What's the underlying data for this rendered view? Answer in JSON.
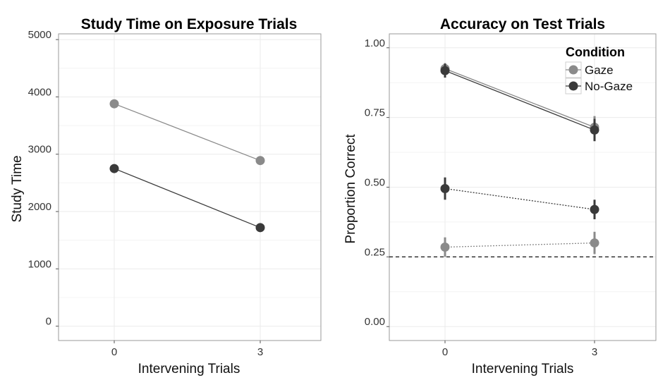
{
  "colors": {
    "Gaze": "#8a8a8a",
    "No-Gaze": "#3a3a3a",
    "grid": "#ebebeb",
    "frame": "#9a9a9a"
  },
  "chart_data": [
    {
      "type": "line",
      "title": "Study Time on Exposure Trials",
      "xlabel": "Intervening Trials",
      "ylabel": "Study Time",
      "categories": [
        "0",
        "3"
      ],
      "ylim": [
        -250,
        5100
      ],
      "yticks": [
        0,
        1000,
        2000,
        3000,
        4000,
        5000
      ],
      "ytick_labels": [
        "0",
        "1000",
        "2000",
        "3000",
        "4000",
        "5000"
      ],
      "grid": true,
      "series": [
        {
          "name": "Gaze",
          "values": [
            3880,
            2890
          ],
          "err": [
            60,
            60
          ],
          "line": "solid"
        },
        {
          "name": "No-Gaze",
          "values": [
            2750,
            1720
          ],
          "err": [
            30,
            30
          ],
          "line": "solid"
        }
      ]
    },
    {
      "type": "line",
      "title": "Accuracy on Test Trials",
      "xlabel": "Intervening Trials",
      "ylabel": "Proportion Correct",
      "categories": [
        "0",
        "3"
      ],
      "ylim": [
        -0.05,
        1.05
      ],
      "yticks": [
        0,
        0.25,
        0.5,
        0.75,
        1.0
      ],
      "ytick_labels": [
        "0.00",
        "0.25",
        "0.50",
        "0.75",
        "1.00"
      ],
      "grid": true,
      "reference_line": {
        "y": 0.25,
        "style": "dashed"
      },
      "legend": {
        "title": "Condition",
        "position": "top-right",
        "entries": [
          "Gaze",
          "No-Gaze"
        ]
      },
      "series": [
        {
          "name": "Gaze",
          "values": [
            0.925,
            0.715
          ],
          "err": [
            0.02,
            0.04
          ],
          "line": "solid"
        },
        {
          "name": "No-Gaze",
          "values": [
            0.918,
            0.705
          ],
          "err": [
            0.025,
            0.04
          ],
          "line": "solid"
        },
        {
          "name": "No-Gaze",
          "values": [
            0.495,
            0.42
          ],
          "err": [
            0.04,
            0.035
          ],
          "line": "dotted"
        },
        {
          "name": "Gaze",
          "values": [
            0.285,
            0.3
          ],
          "err": [
            0.035,
            0.04
          ],
          "line": "dotted"
        }
      ]
    }
  ]
}
